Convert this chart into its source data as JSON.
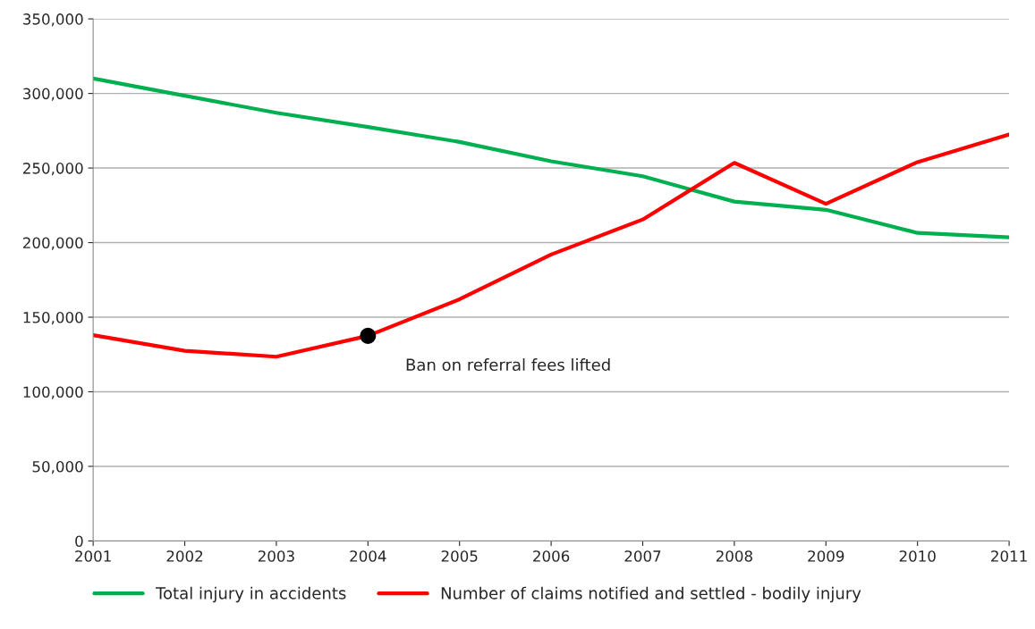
{
  "chart_data": {
    "type": "line",
    "x": [
      2001,
      2002,
      2003,
      2004,
      2005,
      2006,
      2007,
      2008,
      2009,
      2010,
      2011
    ],
    "series": [
      {
        "name": "Total injury in accidents",
        "color": "#00b050",
        "values": [
          310000,
          298500,
          287000,
          277500,
          267500,
          254500,
          244500,
          227500,
          222000,
          206500,
          203500
        ]
      },
      {
        "name": "Number of claims notified and settled - bodily injury",
        "color": "#ff0000",
        "values": [
          138000,
          127500,
          123500,
          137500,
          162000,
          192000,
          215500,
          253500,
          226000,
          254000,
          272500
        ]
      }
    ],
    "xlim": [
      2001,
      2011
    ],
    "xticks": [
      2001,
      2002,
      2003,
      2004,
      2005,
      2006,
      2007,
      2008,
      2009,
      2010,
      2011
    ],
    "ylim": [
      0,
      350000
    ],
    "yticks": [
      0,
      {
        "value": 50000,
        "label": "50,000"
      },
      {
        "value": 100000,
        "label": "100,000"
      },
      {
        "value": 150000,
        "label": "150,000"
      },
      {
        "value": 200000,
        "label": "200,000"
      },
      {
        "value": 250000,
        "label": "250,000"
      },
      {
        "value": 300000,
        "label": "300,000"
      },
      {
        "value": 350000,
        "label": "350,000"
      }
    ],
    "grid": "y",
    "legend": "bottom",
    "marker": "none",
    "line_style": "solid",
    "annotations": [
      {
        "text": "Ban on referral fees lifted",
        "x": 2004,
        "y": 137500
      }
    ]
  }
}
